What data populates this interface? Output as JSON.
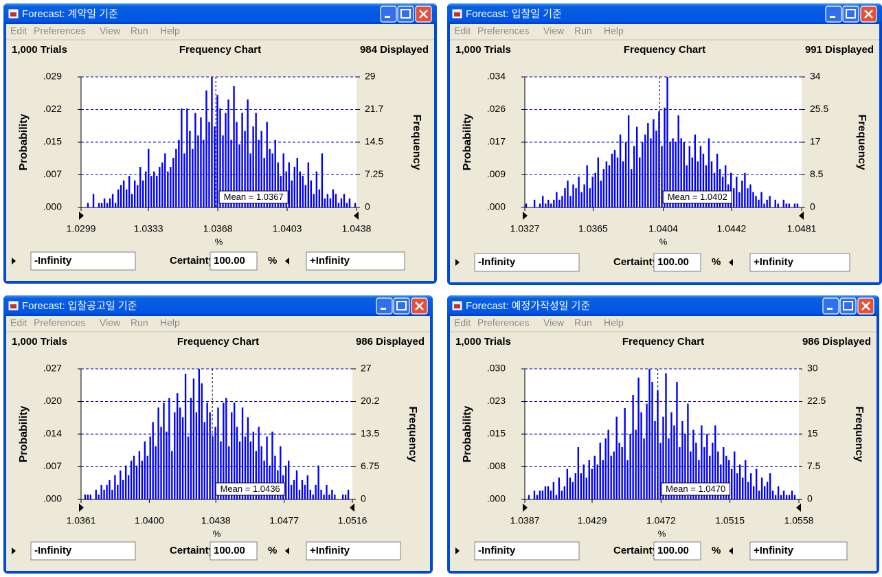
{
  "windows": [
    {
      "title": "Forecast: 계약일 기준",
      "menu": [
        "Edit",
        "Preferences",
        "View",
        "Run",
        "Help"
      ],
      "trials": "1,000 Trials",
      "displayed": "984 Displayed",
      "left_field": "-Infinity",
      "certainty_label": "Certainty",
      "certainty_value": "100.00",
      "certainty_unit": "%",
      "right_field": "+Infinity"
    },
    {
      "title": "Forecast: 입찰일 기준",
      "menu": [
        "Edit",
        "Preferences",
        "View",
        "Run",
        "Help"
      ],
      "trials": "1,000 Trials",
      "displayed": "991 Displayed",
      "left_field": "-Infinity",
      "certainty_label": "Certainty",
      "certainty_value": "100.00",
      "certainty_unit": "%",
      "right_field": "+Infinity"
    },
    {
      "title": "Forecast: 입찰공고일 기준",
      "menu": [
        "Edit",
        "Preferences",
        "View",
        "Run",
        "Help"
      ],
      "trials": "1,000 Trials",
      "displayed": "986 Displayed",
      "left_field": "-Infinity",
      "certainty_label": "Certainty",
      "certainty_value": "100.00",
      "certainty_unit": "%",
      "right_field": "+Infinity"
    },
    {
      "title": "Forecast: 예정가작성일 기준",
      "menu": [
        "Edit",
        "Preferences",
        "View",
        "Run",
        "Help"
      ],
      "trials": "1,000 Trials",
      "displayed": "986 Displayed",
      "left_field": "-Infinity",
      "certainty_label": "Certainty",
      "certainty_value": "100.00",
      "certainty_unit": "%",
      "right_field": "+Infinity"
    }
  ],
  "chart_data": [
    {
      "type": "bar",
      "title": "Frequency Chart",
      "x_label": "%",
      "y_label": "Probability",
      "y2_label": "Frequency",
      "grid": true,
      "xlim": [
        1.0299,
        1.0438
      ],
      "xticks": [
        1.0299,
        1.0333,
        1.0368,
        1.0403,
        1.0438
      ],
      "ylim": [
        0,
        0.029
      ],
      "yticks": [
        {
          "value": 0,
          "label": ".000"
        },
        {
          "value": 0.00725,
          "label": ".007"
        },
        {
          "value": 0.0145,
          "label": ".015"
        },
        {
          "value": 0.02175,
          "label": ".022"
        },
        {
          "value": 0.029,
          "label": ".029"
        }
      ],
      "y2lim": [
        0,
        29
      ],
      "y2ticks": [
        0,
        7.25,
        14.5,
        {
          "value": 21.75,
          "label": "21.7"
        },
        29
      ],
      "mean": 1.0367,
      "mean_label": "Mean = 1.0367",
      "categories": [
        null,
        null,
        null,
        null,
        null,
        null,
        null,
        null,
        null,
        null,
        null,
        null,
        null,
        null,
        null,
        null,
        null,
        null,
        null,
        null,
        null,
        null,
        null,
        null,
        null,
        null,
        null,
        null,
        null,
        null,
        null,
        null,
        null,
        null,
        null,
        null,
        null,
        null,
        null,
        null,
        null,
        null,
        null,
        null,
        null,
        null,
        null,
        null,
        null,
        null,
        null,
        null,
        null,
        null,
        null,
        null,
        null,
        null,
        null,
        null,
        null,
        null,
        null,
        null,
        null,
        null,
        null,
        null,
        null,
        null,
        null,
        null,
        null,
        null,
        null,
        null,
        null,
        null,
        null,
        null,
        null,
        null,
        null,
        null,
        null,
        null,
        null,
        null,
        null,
        null,
        null,
        null,
        null,
        null,
        null,
        null,
        null,
        null,
        null,
        null
      ],
      "series": [
        {
          "color": "#0000ff",
          "axis": "y2",
          "values": [
            0,
            0,
            1,
            0,
            3,
            0,
            1,
            1,
            2,
            1,
            2,
            3,
            1,
            4,
            5,
            6,
            4,
            7,
            3,
            6,
            5,
            9,
            6,
            8,
            13,
            7,
            8,
            7,
            9,
            10,
            12,
            8,
            9,
            11,
            13,
            15,
            22,
            12,
            22,
            17,
            13,
            21,
            16,
            20,
            15,
            26,
            19,
            29,
            18,
            25,
            22,
            16,
            21,
            24,
            15,
            27,
            19,
            14,
            21,
            17,
            24,
            12,
            18,
            21,
            15,
            17,
            11,
            19,
            13,
            12,
            15,
            10,
            7,
            12,
            8,
            10,
            6,
            9,
            11,
            8,
            7,
            5,
            10,
            6,
            3,
            8,
            4,
            12,
            2,
            3,
            2,
            4,
            3,
            1,
            2,
            3,
            1,
            2,
            0,
            1
          ]
        }
      ]
    },
    {
      "type": "bar",
      "title": "Frequency Chart",
      "x_label": "%",
      "y_label": "Probability",
      "y2_label": "Frequency",
      "grid": true,
      "xlim": [
        1.0327,
        1.0481
      ],
      "xticks": [
        1.0327,
        1.0365,
        1.0404,
        1.0442,
        1.0481
      ],
      "ylim": [
        0,
        0.034
      ],
      "yticks": [
        {
          "value": 0,
          "label": ".000"
        },
        {
          "value": 0.0085,
          "label": ".009"
        },
        {
          "value": 0.017,
          "label": ".017"
        },
        {
          "value": 0.0255,
          "label": ".026"
        },
        {
          "value": 0.034,
          "label": ".034"
        }
      ],
      "y2lim": [
        0,
        34
      ],
      "y2ticks": [
        0,
        8.5,
        17,
        25.5,
        34
      ],
      "mean": 1.0402,
      "mean_label": "Mean = 1.0402",
      "categories": [
        null,
        null,
        null,
        null,
        null,
        null,
        null,
        null,
        null,
        null,
        null,
        null,
        null,
        null,
        null,
        null,
        null,
        null,
        null,
        null,
        null,
        null,
        null,
        null,
        null,
        null,
        null,
        null,
        null,
        null,
        null,
        null,
        null,
        null,
        null,
        null,
        null,
        null,
        null,
        null,
        null,
        null,
        null,
        null,
        null,
        null,
        null,
        null,
        null,
        null,
        null,
        null,
        null,
        null,
        null,
        null,
        null,
        null,
        null,
        null,
        null,
        null,
        null,
        null,
        null,
        null,
        null,
        null,
        null,
        null,
        null,
        null,
        null,
        null,
        null,
        null,
        null,
        null,
        null,
        null,
        null,
        null,
        null,
        null,
        null,
        null,
        null,
        null,
        null,
        null,
        null,
        null,
        null,
        null,
        null,
        null,
        null,
        null,
        null,
        null
      ],
      "series": [
        {
          "color": "#0000ff",
          "axis": "y2",
          "values": [
            1,
            0,
            0,
            2,
            0,
            1,
            3,
            1,
            2,
            1,
            2,
            4,
            2,
            3,
            5,
            7,
            3,
            6,
            5,
            8,
            4,
            6,
            11,
            5,
            8,
            9,
            13,
            7,
            10,
            12,
            11,
            14,
            15,
            13,
            19,
            12,
            17,
            24,
            10,
            16,
            21,
            13,
            17,
            19,
            22,
            18,
            23,
            20,
            25,
            16,
            26,
            34,
            17,
            18,
            17,
            24,
            18,
            17,
            11,
            16,
            13,
            19,
            12,
            16,
            14,
            11,
            18,
            12,
            9,
            14,
            10,
            8,
            11,
            6,
            9,
            5,
            8,
            4,
            7,
            9,
            5,
            6,
            4,
            3,
            2,
            4,
            1,
            2,
            3,
            0,
            2,
            1,
            0,
            2,
            1,
            1,
            0,
            1,
            1,
            0
          ]
        }
      ]
    },
    {
      "type": "bar",
      "title": "Frequency Chart",
      "x_label": "%",
      "y_label": "Probability",
      "y2_label": "Frequency",
      "grid": true,
      "xlim": [
        1.0361,
        1.0516
      ],
      "xticks": [
        1.0361,
        {
          "value": 1.04,
          "label": "1.0400"
        },
        1.0438,
        1.0477,
        1.0516
      ],
      "ylim": [
        0,
        0.027
      ],
      "yticks": [
        {
          "value": 0,
          "label": ".000"
        },
        {
          "value": 0.00675,
          "label": ".007"
        },
        {
          "value": 0.0135,
          "label": ".014"
        },
        {
          "value": 0.02025,
          "label": ".020"
        },
        {
          "value": 0.027,
          "label": ".027"
        }
      ],
      "y2lim": [
        0,
        27
      ],
      "y2ticks": [
        0,
        6.75,
        13.5,
        {
          "value": 20.25,
          "label": "20.2"
        },
        27
      ],
      "mean": 1.0436,
      "mean_label": "Mean = 1.0436",
      "categories": [
        null,
        null,
        null,
        null,
        null,
        null,
        null,
        null,
        null,
        null,
        null,
        null,
        null,
        null,
        null,
        null,
        null,
        null,
        null,
        null,
        null,
        null,
        null,
        null,
        null,
        null,
        null,
        null,
        null,
        null,
        null,
        null,
        null,
        null,
        null,
        null,
        null,
        null,
        null,
        null,
        null,
        null,
        null,
        null,
        null,
        null,
        null,
        null,
        null,
        null,
        null,
        null,
        null,
        null,
        null,
        null,
        null,
        null,
        null,
        null,
        null,
        null,
        null,
        null,
        null,
        null,
        null,
        null,
        null,
        null,
        null,
        null,
        null,
        null,
        null,
        null,
        null,
        null,
        null,
        null,
        null,
        null,
        null,
        null,
        null,
        null,
        null,
        null,
        null,
        null,
        null,
        null,
        null,
        null,
        null,
        null,
        null,
        null,
        null,
        null
      ],
      "series": [
        {
          "color": "#0000ff",
          "axis": "y2",
          "values": [
            0,
            1,
            1,
            1,
            0,
            2,
            1,
            3,
            2,
            3,
            4,
            2,
            5,
            3,
            6,
            4,
            7,
            5,
            8,
            9,
            7,
            10,
            8,
            12,
            9,
            13,
            16,
            11,
            19,
            15,
            20,
            14,
            21,
            10,
            18,
            22,
            19,
            17,
            26,
            13,
            21,
            25,
            18,
            27,
            24,
            16,
            20,
            18,
            13,
            15,
            19,
            12,
            20,
            21,
            11,
            18,
            20,
            15,
            12,
            19,
            13,
            17,
            12,
            14,
            10,
            15,
            11,
            8,
            13,
            7,
            14,
            9,
            6,
            11,
            5,
            7,
            8,
            3,
            4,
            6,
            2,
            4,
            3,
            5,
            2,
            1,
            3,
            7,
            2,
            1,
            3,
            1,
            2,
            1,
            0,
            0,
            1,
            1,
            2,
            0
          ]
        }
      ]
    },
    {
      "type": "bar",
      "title": "Frequency Chart",
      "x_label": "%",
      "y_label": "Probability",
      "y2_label": "Frequency",
      "grid": true,
      "xlim": [
        1.0387,
        1.0558
      ],
      "xticks": [
        1.0387,
        1.0429,
        1.0472,
        1.0515,
        1.0558
      ],
      "ylim": [
        0,
        0.03
      ],
      "yticks": [
        {
          "value": 0,
          "label": ".000"
        },
        {
          "value": 0.0075,
          "label": ".008"
        },
        {
          "value": 0.015,
          "label": ".015"
        },
        {
          "value": 0.0225,
          "label": ".023"
        },
        {
          "value": 0.03,
          "label": ".030"
        }
      ],
      "y2lim": [
        0,
        30
      ],
      "y2ticks": [
        0,
        7.5,
        15,
        22.5,
        30
      ],
      "mean": 1.047,
      "mean_label": "Mean = 1.0470",
      "categories": [
        null,
        null,
        null,
        null,
        null,
        null,
        null,
        null,
        null,
        null,
        null,
        null,
        null,
        null,
        null,
        null,
        null,
        null,
        null,
        null,
        null,
        null,
        null,
        null,
        null,
        null,
        null,
        null,
        null,
        null,
        null,
        null,
        null,
        null,
        null,
        null,
        null,
        null,
        null,
        null,
        null,
        null,
        null,
        null,
        null,
        null,
        null,
        null,
        null,
        null,
        null,
        null,
        null,
        null,
        null,
        null,
        null,
        null,
        null,
        null,
        null,
        null,
        null,
        null,
        null,
        null,
        null,
        null,
        null,
        null,
        null,
        null,
        null,
        null,
        null,
        null,
        null,
        null,
        null,
        null,
        null,
        null,
        null,
        null,
        null,
        null,
        null,
        null,
        null,
        null,
        null,
        null,
        null,
        null,
        null,
        null,
        null,
        null,
        null,
        null
      ],
      "series": [
        {
          "color": "#0000ff",
          "axis": "y2",
          "values": [
            0,
            1,
            0,
            2,
            1,
            2,
            2,
            3,
            3,
            2,
            4,
            1,
            5,
            2,
            3,
            7,
            5,
            4,
            6,
            12,
            6,
            8,
            5,
            9,
            7,
            10,
            8,
            13,
            9,
            14,
            16,
            10,
            11,
            19,
            13,
            12,
            21,
            9,
            15,
            24,
            16,
            28,
            20,
            14,
            22,
            30,
            27,
            18,
            25,
            13,
            19,
            29,
            14,
            20,
            17,
            27,
            12,
            18,
            15,
            22,
            11,
            16,
            13,
            9,
            17,
            12,
            15,
            10,
            13,
            17,
            11,
            8,
            12,
            10,
            9,
            7,
            11,
            6,
            8,
            5,
            9,
            4,
            6,
            3,
            7,
            2,
            5,
            3,
            4,
            6,
            2,
            1,
            3,
            1,
            2,
            1,
            1,
            2,
            1,
            0
          ]
        }
      ]
    }
  ]
}
